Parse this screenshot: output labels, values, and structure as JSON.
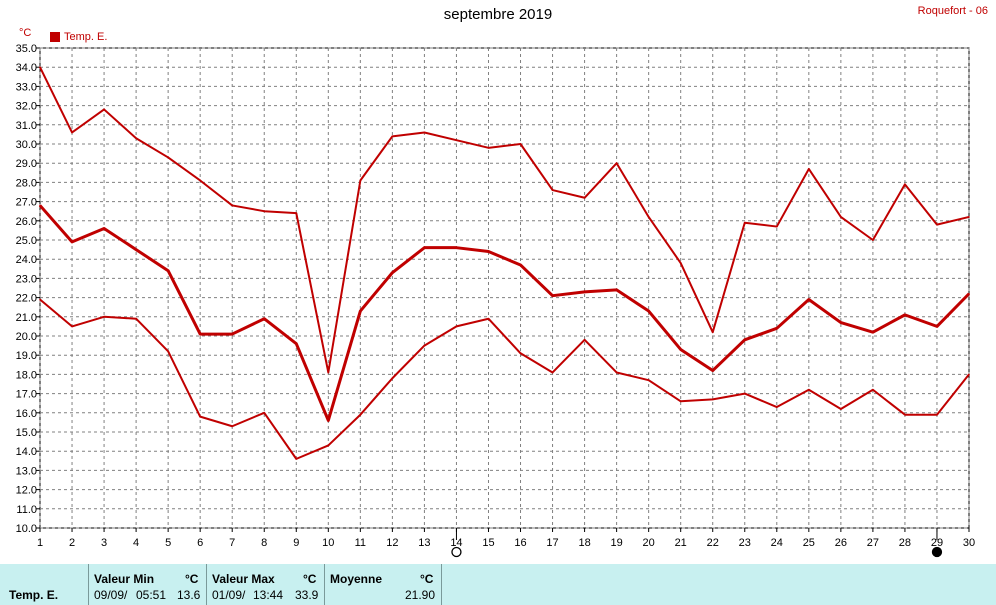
{
  "title": "septembre 2019",
  "station": "Roquefort - 06",
  "unit": "°C",
  "legend": "Temp. E.",
  "colors": {
    "series": "#c00000",
    "grid": "#808080",
    "footer_bg": "#c8f0f0"
  },
  "chart_data": {
    "type": "line",
    "x": [
      1,
      2,
      3,
      4,
      5,
      6,
      7,
      8,
      9,
      10,
      11,
      12,
      13,
      14,
      15,
      16,
      17,
      18,
      19,
      20,
      21,
      22,
      23,
      24,
      25,
      26,
      27,
      28,
      29,
      30
    ],
    "ylim": [
      10.0,
      35.0
    ],
    "yticks": [
      "10.0",
      "11.0",
      "12.0",
      "13.0",
      "14.0",
      "15.0",
      "16.0",
      "17.0",
      "18.0",
      "19.0",
      "20.0",
      "21.0",
      "22.0",
      "23.0",
      "24.0",
      "25.0",
      "26.0",
      "27.0",
      "28.0",
      "29.0",
      "30.0",
      "31.0",
      "32.0",
      "33.0",
      "34.0",
      "35.0"
    ],
    "grid": true,
    "series": [
      {
        "name": "Temp. E.",
        "role": "max",
        "values": [
          34.0,
          30.6,
          31.8,
          30.3,
          29.3,
          28.1,
          26.8,
          26.5,
          26.4,
          18.1,
          28.1,
          30.4,
          30.6,
          30.2,
          29.8,
          30.0,
          27.6,
          27.2,
          29.0,
          26.2,
          23.8,
          20.2,
          25.9,
          25.7,
          28.7,
          26.2,
          25.0,
          27.9,
          25.8,
          26.2
        ]
      },
      {
        "name": "Temp. E.",
        "role": "mean",
        "values": [
          26.8,
          24.9,
          25.6,
          24.5,
          23.4,
          20.1,
          20.1,
          20.9,
          19.6,
          15.6,
          21.3,
          23.3,
          24.6,
          24.6,
          24.4,
          23.7,
          22.1,
          22.3,
          22.4,
          21.3,
          19.3,
          18.2,
          19.8,
          20.4,
          21.9,
          20.7,
          20.2,
          21.1,
          20.5,
          22.2
        ]
      },
      {
        "name": "Temp. E.",
        "role": "min",
        "values": [
          21.9,
          20.5,
          21.0,
          20.9,
          19.2,
          15.8,
          15.3,
          16.0,
          13.6,
          14.3,
          15.9,
          17.8,
          19.5,
          20.5,
          20.9,
          19.1,
          18.1,
          19.8,
          18.1,
          17.7,
          16.6,
          16.7,
          17.0,
          16.3,
          17.2,
          16.2,
          17.2,
          15.9,
          15.9,
          18.0
        ]
      }
    ],
    "moon_phases": [
      {
        "day": 14,
        "phase": "full"
      },
      {
        "day": 29,
        "phase": "new"
      }
    ]
  },
  "footer": {
    "series_label": "Temp. E.",
    "min": {
      "header": "Valeur Min",
      "unit": "°C",
      "date": "09/09/",
      "time": "05:51",
      "value": "13.6"
    },
    "max": {
      "header": "Valeur Max",
      "unit": "°C",
      "date": "01/09/",
      "time": "13:44",
      "value": "33.9"
    },
    "mean": {
      "header": "Moyenne",
      "unit": "°C",
      "value": "21.90"
    }
  }
}
